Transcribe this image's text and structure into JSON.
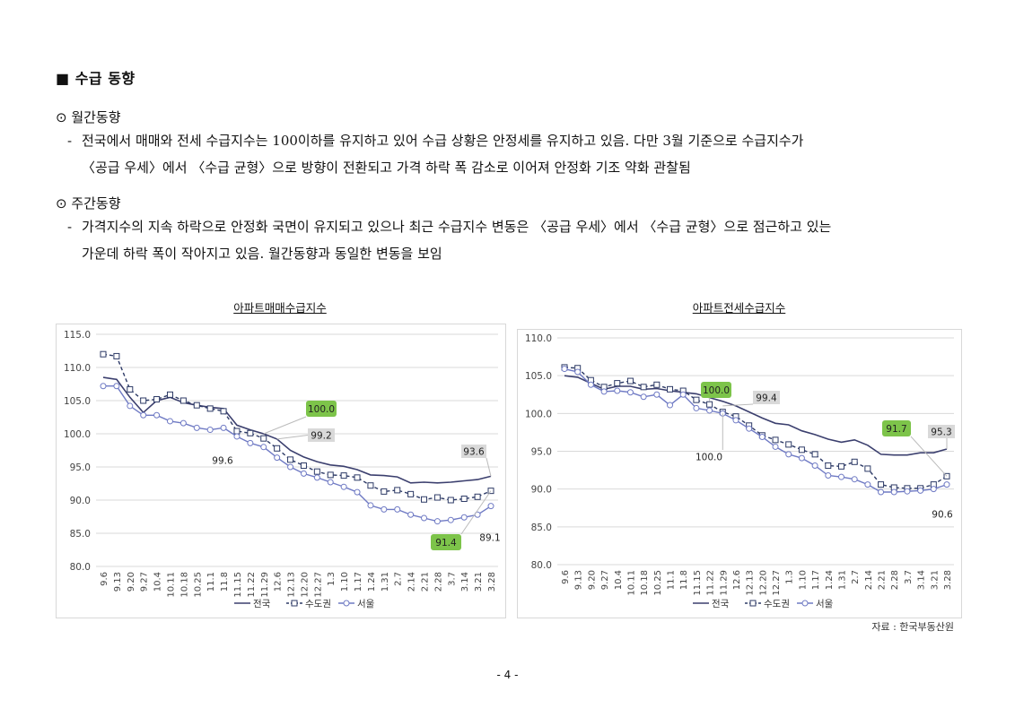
{
  "section": {
    "marker": "■",
    "title": "수급 동향"
  },
  "monthly": {
    "heading": "⊙ 월간동향",
    "dash": "-",
    "line1": "전국에서 매매와 전세 수급지수는 100이하를 유지하고 있어 수급 상황은 안정세를 유지하고 있음. 다만 3월 기준으로 수급지수가",
    "line2": "〈공급 우세〉에서 〈수급 균형〉으로 방향이 전환되고 가격 하락 폭 감소로 이어져 안정화 기조 약화 관찰됨"
  },
  "weekly": {
    "heading": "⊙ 주간동향",
    "dash": "-",
    "line1": "가격지수의 지속 하락으로 안정화 국면이 유지되고 있으나 최근 수급지수 변동은 〈공급 우세〉에서 〈수급 균형〉으로 점근하고 있는",
    "line2": "가운데 하락 폭이 작아지고 있음. 월간동향과 동일한 변동을 보임"
  },
  "source": "자료 : 한국부동산원",
  "page_number": "- 4 -",
  "colors": {
    "national": "#3b3f6e",
    "capital": "#2d3a66",
    "seoul": "#6f7ac4",
    "highlight_green": "#7dc44a",
    "highlight_gray": "#d9d9d9"
  },
  "chart_data": [
    {
      "type": "line",
      "title": "아파트매매수급지수",
      "categories": [
        "9.6",
        "9.13",
        "9.20",
        "9.27",
        "10.4",
        "10.11",
        "10.18",
        "10.25",
        "11.1",
        "11.8",
        "11.15",
        "11.22",
        "11.29",
        "12.6",
        "12.13",
        "12.20",
        "12.27",
        "1.3",
        "1.10",
        "1.17",
        "1.24",
        "1.31",
        "2.7",
        "2.14",
        "2.21",
        "2.28",
        "3.7",
        "3.14",
        "3.21",
        "3.28"
      ],
      "ylim": [
        80,
        115
      ],
      "yticks": [
        "80.0",
        "85.0",
        "90.0",
        "95.0",
        "100.0",
        "105.0",
        "110.0",
        "115.0"
      ],
      "series": [
        {
          "name": "전국",
          "marker": "none",
          "values": [
            108.5,
            108.2,
            105.5,
            103.2,
            105.0,
            105.5,
            104.7,
            104.3,
            104.0,
            103.8,
            101.3,
            100.6,
            100.0,
            99.2,
            97.5,
            96.5,
            95.8,
            95.3,
            95.1,
            94.6,
            93.8,
            93.7,
            93.5,
            92.6,
            92.7,
            92.6,
            92.7,
            92.9,
            93.1,
            93.6
          ]
        },
        {
          "name": "수도권",
          "marker": "square",
          "values": [
            112.0,
            111.7,
            106.7,
            105.0,
            105.2,
            105.9,
            105.0,
            104.3,
            103.8,
            103.4,
            100.4,
            100.1,
            99.3,
            97.8,
            96.1,
            95.2,
            94.3,
            93.8,
            93.7,
            93.4,
            92.2,
            91.3,
            91.5,
            90.9,
            90.1,
            90.4,
            90.0,
            90.2,
            90.5,
            91.4
          ]
        },
        {
          "name": "서울",
          "marker": "circle",
          "values": [
            107.2,
            107.2,
            104.2,
            102.8,
            102.8,
            101.9,
            101.6,
            100.9,
            100.6,
            100.9,
            99.6,
            98.6,
            98.0,
            96.4,
            95.0,
            94.0,
            93.4,
            92.7,
            92.0,
            91.2,
            89.2,
            88.6,
            88.6,
            87.8,
            87.3,
            86.8,
            87.0,
            87.4,
            87.8,
            89.1
          ]
        }
      ],
      "annotations": [
        {
          "text": "100.0",
          "style": "green"
        },
        {
          "text": "99.2",
          "style": "gray"
        },
        {
          "text": "99.6",
          "style": "plain"
        },
        {
          "text": "93.6",
          "style": "gray"
        },
        {
          "text": "91.4",
          "style": "green"
        },
        {
          "text": "89.1",
          "style": "plain"
        }
      ],
      "legend": [
        "전국",
        "수도권",
        "서울"
      ],
      "legend_position": "bottom"
    },
    {
      "type": "line",
      "title": "아파트전세수급지수",
      "categories": [
        "9.6",
        "9.13",
        "9.20",
        "9.27",
        "10.4",
        "10.11",
        "10.18",
        "10.25",
        "11.1",
        "11.8",
        "11.15",
        "11.22",
        "11.29",
        "12.6",
        "12.13",
        "12.20",
        "12.27",
        "1.3",
        "1.10",
        "1.17",
        "1.24",
        "1.31",
        "2.7",
        "2.14",
        "2.21",
        "2.28",
        "3.7",
        "3.14",
        "3.21",
        "3.28"
      ],
      "ylim": [
        80,
        110
      ],
      "yticks": [
        "80.0",
        "85.0",
        "90.0",
        "95.0",
        "100.0",
        "105.0",
        "110.0"
      ],
      "series": [
        {
          "name": "전국",
          "marker": "none",
          "values": [
            105.0,
            104.8,
            104.0,
            103.2,
            103.6,
            103.6,
            103.2,
            103.3,
            103.0,
            102.8,
            102.6,
            102.1,
            101.6,
            101.0,
            100.2,
            99.4,
            98.7,
            98.5,
            97.7,
            97.2,
            96.6,
            96.2,
            96.5,
            95.8,
            94.6,
            94.5,
            94.5,
            94.8,
            94.8,
            95.3
          ]
        },
        {
          "name": "수도권",
          "marker": "square",
          "values": [
            106.1,
            106.0,
            104.4,
            103.5,
            104.0,
            104.3,
            103.5,
            103.8,
            103.2,
            103.0,
            101.8,
            101.2,
            100.2,
            99.6,
            98.4,
            97.1,
            96.5,
            95.9,
            95.2,
            94.6,
            93.1,
            93.0,
            93.6,
            92.7,
            90.6,
            90.2,
            90.1,
            90.1,
            90.6,
            91.7
          ]
        },
        {
          "name": "서울",
          "marker": "circle",
          "values": [
            105.9,
            105.5,
            103.8,
            102.9,
            103.0,
            102.8,
            102.2,
            102.5,
            101.1,
            102.5,
            100.7,
            100.4,
            100.0,
            99.1,
            98.0,
            96.9,
            95.6,
            94.6,
            94.1,
            93.1,
            91.8,
            91.6,
            91.3,
            90.6,
            89.6,
            89.6,
            89.7,
            89.8,
            90.0,
            90.6
          ]
        }
      ],
      "annotations": [
        {
          "text": "100.0",
          "style": "green"
        },
        {
          "text": "99.4",
          "style": "gray"
        },
        {
          "text": "100.0",
          "style": "plain"
        },
        {
          "text": "91.7",
          "style": "green"
        },
        {
          "text": "95.3",
          "style": "gray"
        },
        {
          "text": "90.6",
          "style": "plain"
        }
      ],
      "legend": [
        "전국",
        "수도권",
        "서울"
      ],
      "legend_position": "bottom"
    }
  ]
}
